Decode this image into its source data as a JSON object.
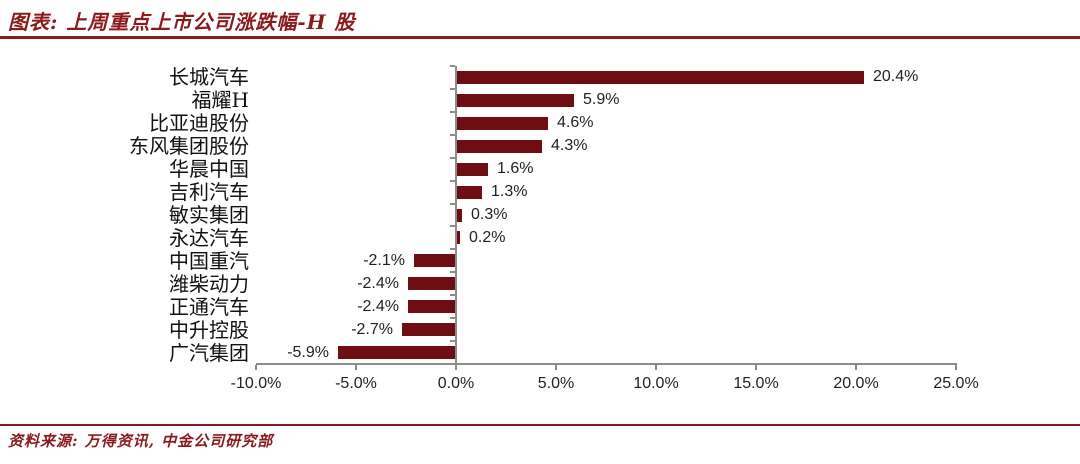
{
  "header": {
    "title": "图表: 上周重点上市公司涨跌幅-H 股"
  },
  "chart_data": {
    "type": "bar",
    "orientation": "horizontal",
    "title": "上周重点上市公司涨跌幅-H 股",
    "categories": [
      "长城汽车",
      "福耀H",
      "比亚迪股份",
      "东风集团股份",
      "华晨中国",
      "吉利汽车",
      "敏实集团",
      "永达汽车",
      "中国重汽",
      "潍柴动力",
      "正通汽车",
      "中升控股",
      "广汽集团"
    ],
    "values": [
      20.4,
      5.9,
      4.6,
      4.3,
      1.6,
      1.3,
      0.3,
      0.2,
      -2.1,
      -2.4,
      -2.4,
      -2.7,
      -5.9
    ],
    "value_labels": [
      "20.4%",
      "5.9%",
      "4.6%",
      "4.3%",
      "1.6%",
      "1.3%",
      "0.3%",
      "0.2%",
      "-2.1%",
      "-2.4%",
      "-2.4%",
      "-2.7%",
      "-5.9%"
    ],
    "xlabel": "",
    "ylabel": "",
    "xlim": [
      -10,
      25
    ],
    "x_ticks": [
      -10,
      -5,
      0,
      5,
      10,
      15,
      20,
      25
    ],
    "x_tick_labels": [
      "-10.0%",
      "-5.0%",
      "0.0%",
      "5.0%",
      "10.0%",
      "15.0%",
      "20.0%",
      "25.0%"
    ],
    "bar_color": "#6e0d12",
    "axis_color": "#8c8c8c",
    "grid": false,
    "legend": "none"
  },
  "footer": {
    "source": "资料来源: 万得资讯, 中金公司研究部"
  }
}
